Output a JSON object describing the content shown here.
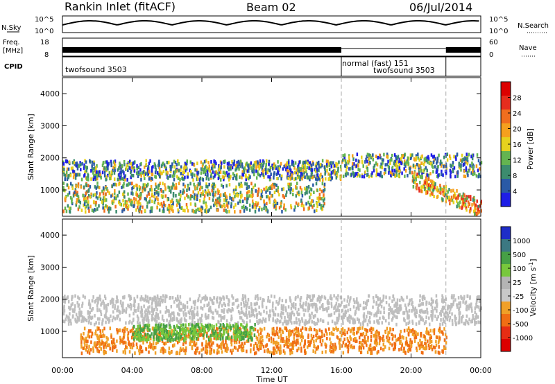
{
  "header": {
    "station": "Rankin Inlet (fitACF)",
    "beam": "Beam 02",
    "date": "06/Jul/2014"
  },
  "strips": {
    "nsky_label": "N.Sky",
    "nsky_ticks": [
      "10^5",
      "10^0"
    ],
    "nsearch_label": "N.Search",
    "freq_label_1": "Freq.",
    "freq_label_2": "[MHz]",
    "freq_ticks": [
      "18",
      "8"
    ],
    "nave_label": "Nave",
    "nave_ticks": [
      "60",
      "0"
    ],
    "cpid_label": "CPID",
    "cpid_segments": [
      {
        "label": "twofsound 3503",
        "start_hour": 0,
        "end_hour": 16
      },
      {
        "label": "normal (fast) 151",
        "start_hour": 16,
        "end_hour": 22
      },
      {
        "label": "twofsound 3503",
        "start_hour": 16,
        "end_hour": 22
      }
    ]
  },
  "colors": {
    "power_scale": [
      "#1e1ee6",
      "#2a5aa6",
      "#3c8c6e",
      "#64b450",
      "#e6d21e",
      "#f5a01e",
      "#f06e1e",
      "#e62d1e",
      "#dc0000"
    ],
    "velocity_scale": [
      "#1e2dc8",
      "#3c7882",
      "#46a046",
      "#78c83c",
      "#b4b4b4",
      "#c8c8c8",
      "#f0a028",
      "#f06e14",
      "#e62d14",
      "#dc0000"
    ],
    "ground_scatter": "#bebebe"
  },
  "chart_data": [
    {
      "type": "heatmap",
      "name": "power",
      "xlabel": "Time UT",
      "ylabel": "Slant Range [km]",
      "xlim": [
        0,
        24
      ],
      "ylim": [
        180,
        4500
      ],
      "xticks": [
        "00:00",
        "04:00",
        "08:00",
        "12:00",
        "16:00",
        "20:00",
        "00:00"
      ],
      "yticks": [
        1000,
        2000,
        3000,
        4000
      ],
      "colorbar_label": "Power [dB]",
      "colorbar_ticks": [
        4,
        8,
        12,
        16,
        20,
        24,
        28
      ],
      "colorbar_range": [
        0,
        32
      ],
      "markers_hours": [
        16,
        22
      ],
      "features": [
        {
          "desc": "band",
          "x_start": 0,
          "x_end": 16,
          "y_low": 1300,
          "y_high": 1900,
          "level_db": 20
        },
        {
          "desc": "band",
          "x_start": 16,
          "x_end": 24,
          "y_low": 1400,
          "y_high": 2100,
          "level_db": 20
        },
        {
          "desc": "lower",
          "x_start": 0,
          "x_end": 15,
          "y_low": 300,
          "y_high": 1200,
          "level_db": 24
        },
        {
          "desc": "descending",
          "x_start": 20,
          "x_end": 24,
          "y_low": 400,
          "y_high": 1300,
          "level_db": 28
        }
      ]
    },
    {
      "type": "heatmap",
      "name": "velocity",
      "xlabel": "Time UT",
      "ylabel": "Slant Range [km]",
      "xlim": [
        0,
        24
      ],
      "ylim": [
        180,
        4500
      ],
      "xticks": [
        "00:00",
        "04:00",
        "08:00",
        "12:00",
        "16:00",
        "20:00",
        "00:00"
      ],
      "yticks": [
        1000,
        2000,
        3000,
        4000
      ],
      "colorbar_label": "Velocity [m s^-1]",
      "colorbar_ticks": [
        "1000",
        "500",
        "100",
        "25",
        "-25",
        "-100",
        "-500",
        "-1000"
      ],
      "markers_hours": [
        16,
        22
      ],
      "features": [
        {
          "desc": "ground scatter",
          "x_start": 0,
          "x_end": 24,
          "y_low": 1200,
          "y_high": 2100
        },
        {
          "desc": "negative velocity",
          "x_start": 1,
          "x_end": 22,
          "y_low": 300,
          "y_high": 1100,
          "level": -500
        },
        {
          "desc": "positive velocity",
          "x_start": 4,
          "x_end": 11,
          "y_low": 700,
          "y_high": 1200,
          "level": 100
        }
      ]
    }
  ]
}
